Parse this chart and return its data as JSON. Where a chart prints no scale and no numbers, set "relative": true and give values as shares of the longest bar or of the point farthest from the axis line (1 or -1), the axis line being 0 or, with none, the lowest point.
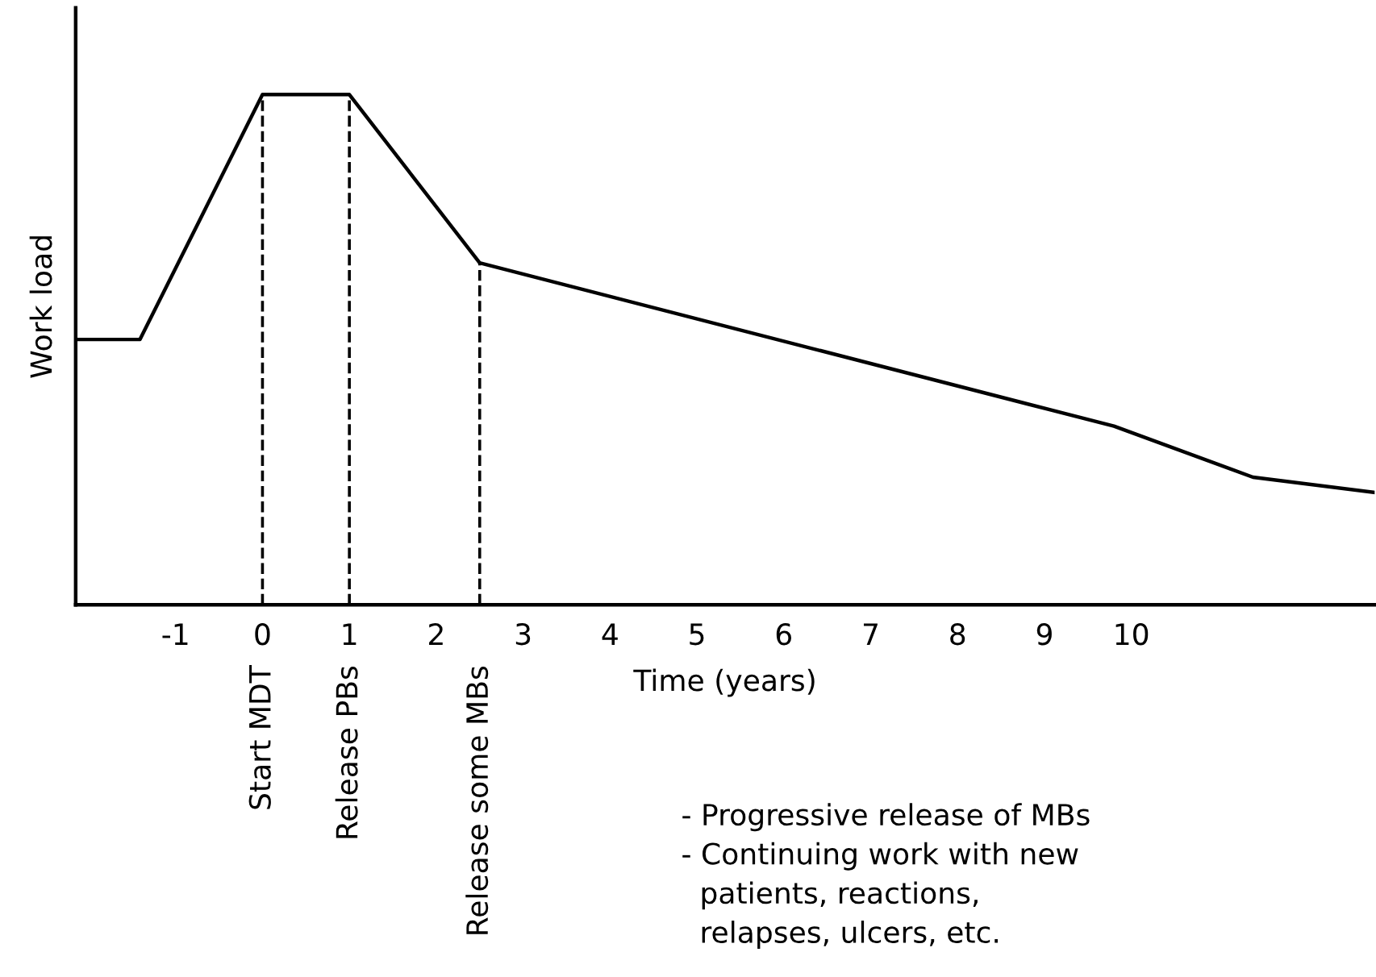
{
  "chart_data": {
    "type": "line",
    "relative": true,
    "xlabel": "Time (years)",
    "ylabel": "Work load",
    "x": [
      -2.15,
      -1.41,
      0,
      1,
      2.5,
      9.8,
      11.4,
      12.8
    ],
    "series": [
      {
        "color": "#000000",
        "values": [
          0.52,
          0.52,
          1.0,
          1.0,
          0.67,
          0.35,
          0.25,
          0.22
        ]
      }
    ],
    "xlim": [
      -2.15,
      12.8
    ],
    "xticks": [
      -1,
      0,
      1,
      2,
      3,
      4,
      5,
      6,
      7,
      8,
      9,
      10
    ],
    "tick_labels": "x",
    "grid": false,
    "legend": false,
    "marker": "none",
    "line_style": "solid",
    "ref_lines": [
      {
        "axis": "x",
        "value": 0,
        "label": "Start MDT",
        "line_style": "dashed"
      },
      {
        "axis": "x",
        "value": 1,
        "label": "Release PBs",
        "line_style": "dashed"
      },
      {
        "axis": "x",
        "value": 2.5,
        "label": "Release some MBs",
        "line_style": "dashed"
      }
    ],
    "annotations": [
      "- Progressive release of MBs",
      "- Continuing work with new\n  patients, reactions,\n  relapses, ulcers, etc."
    ]
  }
}
